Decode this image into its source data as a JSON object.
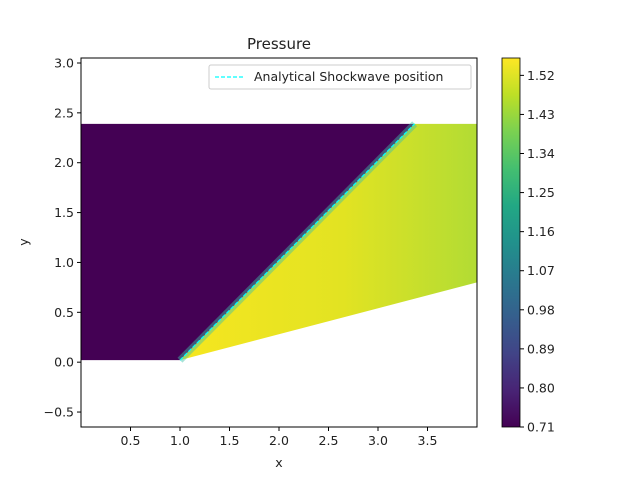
{
  "chart_data": {
    "type": "heatmap",
    "title": "Pressure",
    "xlabel": "x",
    "ylabel": "y",
    "xlim": [
      0.0,
      4.0
    ],
    "ylim": [
      -0.65,
      3.05
    ],
    "x_ticks": [
      0.5,
      1.0,
      1.5,
      2.0,
      2.5,
      3.0,
      3.5
    ],
    "x_tick_labels": [
      "0.5",
      "1.0",
      "1.5",
      "2.0",
      "2.5",
      "3.0",
      "3.5"
    ],
    "y_ticks": [
      -0.5,
      0.0,
      0.5,
      1.0,
      1.5,
      2.0,
      2.5,
      3.0
    ],
    "y_tick_labels": [
      "−0.5",
      "0.0",
      "0.5",
      "1.0",
      "1.5",
      "2.0",
      "2.5",
      "3.0"
    ],
    "colormap": "viridis",
    "colorbar": {
      "min": 0.71,
      "max": 1.56,
      "ticks": [
        0.71,
        0.8,
        0.89,
        0.98,
        1.07,
        1.16,
        1.25,
        1.34,
        1.43,
        1.52
      ],
      "tick_labels": [
        "0.71",
        "0.80",
        "0.89",
        "0.98",
        "1.07",
        "1.16",
        "1.25",
        "1.34",
        "1.43",
        "1.52"
      ]
    },
    "domain": {
      "upstream_region": [
        [
          0.0,
          0.02
        ],
        [
          1.0,
          0.02
        ],
        [
          3.37,
          2.39
        ],
        [
          0.0,
          2.39
        ]
      ],
      "upstream_pressure": 0.71,
      "downstream_region": [
        [
          1.0,
          0.02
        ],
        [
          4.0,
          0.8
        ],
        [
          4.0,
          2.39
        ],
        [
          3.37,
          2.39
        ]
      ],
      "downstream_pressure_range": [
        1.45,
        1.55
      ]
    },
    "series": [
      {
        "name": "Analytical Shockwave position",
        "style": "dashed",
        "color": "#00ffff",
        "x": [
          1.0,
          3.37
        ],
        "y": [
          0.02,
          2.39
        ]
      }
    ],
    "legend_position": "top-right",
    "grid": false
  }
}
